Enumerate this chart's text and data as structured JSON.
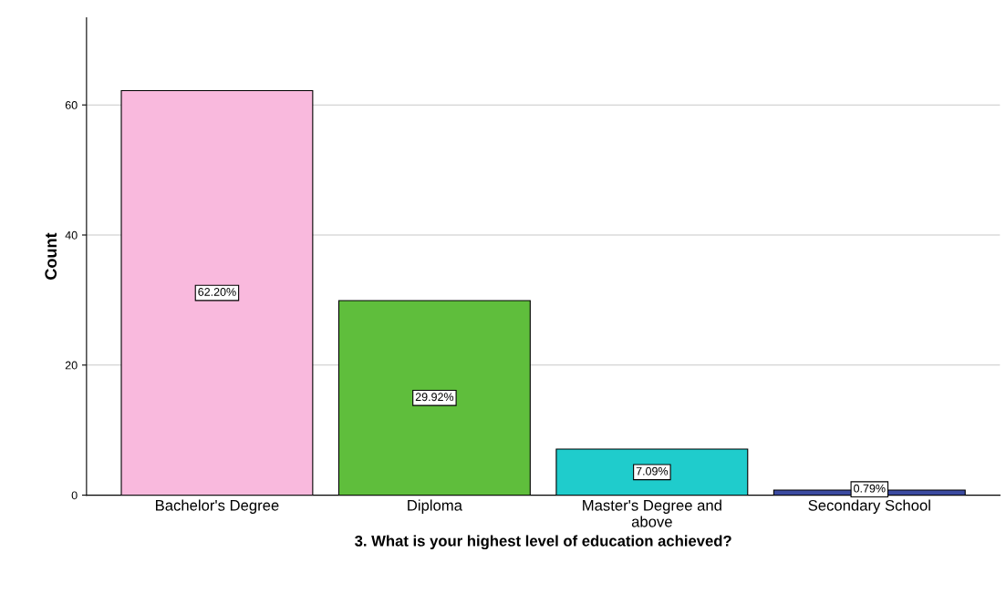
{
  "chart_data": {
    "type": "bar",
    "xlabel": "3. What is your highest level of education achieved?",
    "ylabel": "Count",
    "categories": [
      "Bachelor's Degree",
      "Diploma",
      "Master's Degree and\nabove",
      "Secondary School"
    ],
    "values": [
      62.2,
      29.92,
      7.09,
      0.79
    ],
    "colors": [
      "#f9b9dd",
      "#5fbe3c",
      "#1fcccc",
      "#3b4aa0"
    ],
    "value_labels": [
      "62.20%",
      "29.92%",
      "7.09%",
      "0.79%"
    ],
    "ylim": [
      0,
      73.4
    ],
    "yticks": [
      0,
      20,
      40,
      60
    ],
    "grid": "y"
  }
}
